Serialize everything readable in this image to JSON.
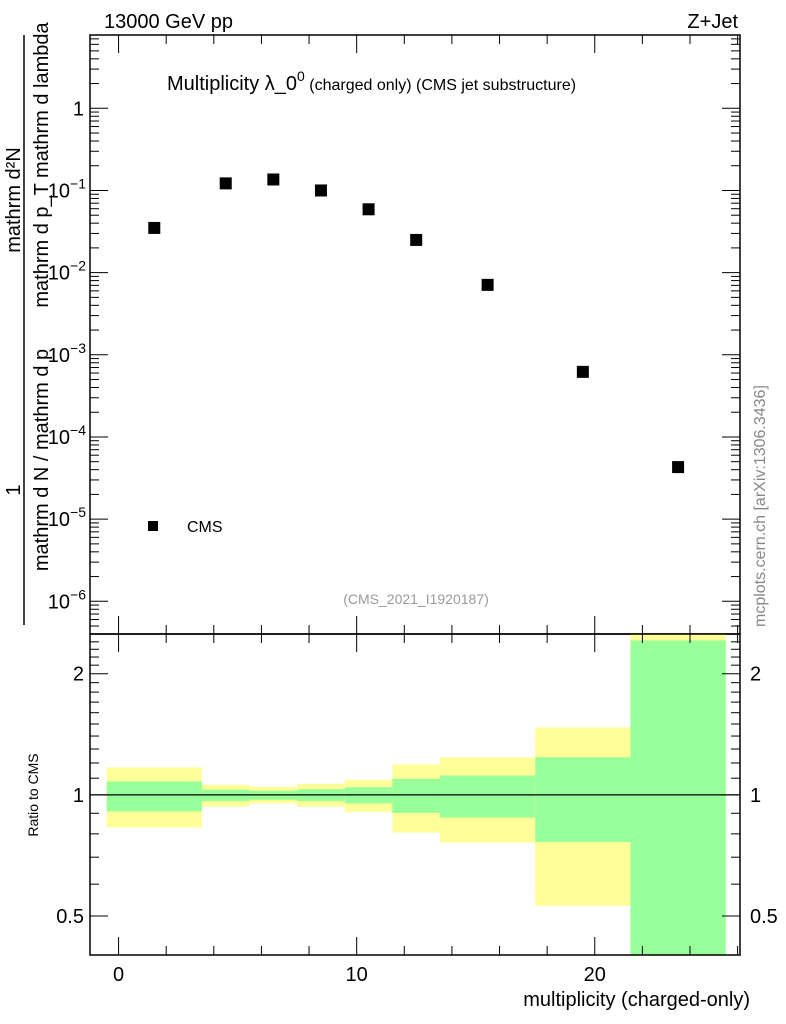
{
  "header": {
    "left": "13000 GeV pp",
    "right": "Z+Jet"
  },
  "side_label": "mcplots.cern.ch [arXiv:1306.3436]",
  "chart_data": [
    {
      "type": "scatter",
      "title_main": "Multiplicity λ_0",
      "title_sup": "0",
      "title_sub": " (charged only) (CMS jet substructure)",
      "watermark": "(CMS_2021_I1920187)",
      "ylabel_parts": {
        "num1": "mathrm d²N",
        "den1": "mathrm d p_T mathrm d lambda",
        "num2": "1",
        "den2": "mathrm d N / mathrm d p",
        "T": "T"
      },
      "yscale": "log",
      "ylim": [
        4e-07,
        7.8
      ],
      "xlim": [
        -1.2,
        26.1
      ],
      "yticks": [
        {
          "v": 1,
          "label": "1"
        },
        {
          "v": 0.1,
          "label": "10",
          "exp": "−1"
        },
        {
          "v": 0.01,
          "label": "10",
          "exp": "−2"
        },
        {
          "v": 0.001,
          "label": "10",
          "exp": "−3"
        },
        {
          "v": 0.0001,
          "label": "10",
          "exp": "−4"
        },
        {
          "v": 1e-05,
          "label": "10",
          "exp": "−5"
        },
        {
          "v": 1e-06,
          "label": "10",
          "exp": "−6"
        }
      ],
      "legend": {
        "label": "CMS",
        "placement": "bottom-left"
      },
      "series": [
        {
          "name": "CMS",
          "x": [
            1.5,
            4.5,
            6.5,
            8.5,
            10.5,
            12.5,
            15.5,
            19.5,
            23.5
          ],
          "y": [
            0.035,
            0.122,
            0.136,
            0.1,
            0.059,
            0.025,
            0.0071,
            0.00062,
            4.3e-05
          ]
        }
      ]
    },
    {
      "type": "area",
      "ylabel": "Ratio to CMS",
      "xlabel": "multiplicity (charged-only)",
      "yscale": "log",
      "ylim": [
        0.4,
        2.51
      ],
      "xlim": [
        -1.2,
        26.1
      ],
      "yticks": [
        {
          "v": 2,
          "label": "2"
        },
        {
          "v": 1,
          "label": "1"
        },
        {
          "v": 0.5,
          "label": "0.5"
        }
      ],
      "xticks": [
        {
          "v": 0,
          "label": "0"
        },
        {
          "v": 10,
          "label": "10"
        },
        {
          "v": 20,
          "label": "20"
        }
      ],
      "bins": [
        -0.5,
        3.5,
        5.5,
        7.5,
        9.5,
        11.5,
        13.5,
        17.5,
        21.5,
        25.5
      ],
      "band_outer": {
        "color": "#ffff99",
        "lo": [
          0.83,
          0.935,
          0.952,
          0.935,
          0.907,
          0.806,
          0.761,
          0.53,
          0.3
        ],
        "hi": [
          1.17,
          1.06,
          1.047,
          1.065,
          1.09,
          1.19,
          1.24,
          1.47,
          2.6
        ]
      },
      "band_inner": {
        "color": "#99ff99",
        "lo": [
          0.91,
          0.965,
          0.972,
          0.965,
          0.952,
          0.902,
          0.878,
          0.763,
          0.3
        ],
        "hi": [
          1.08,
          1.03,
          1.023,
          1.033,
          1.045,
          1.096,
          1.117,
          1.24,
          2.42
        ]
      },
      "reference": 1
    }
  ]
}
